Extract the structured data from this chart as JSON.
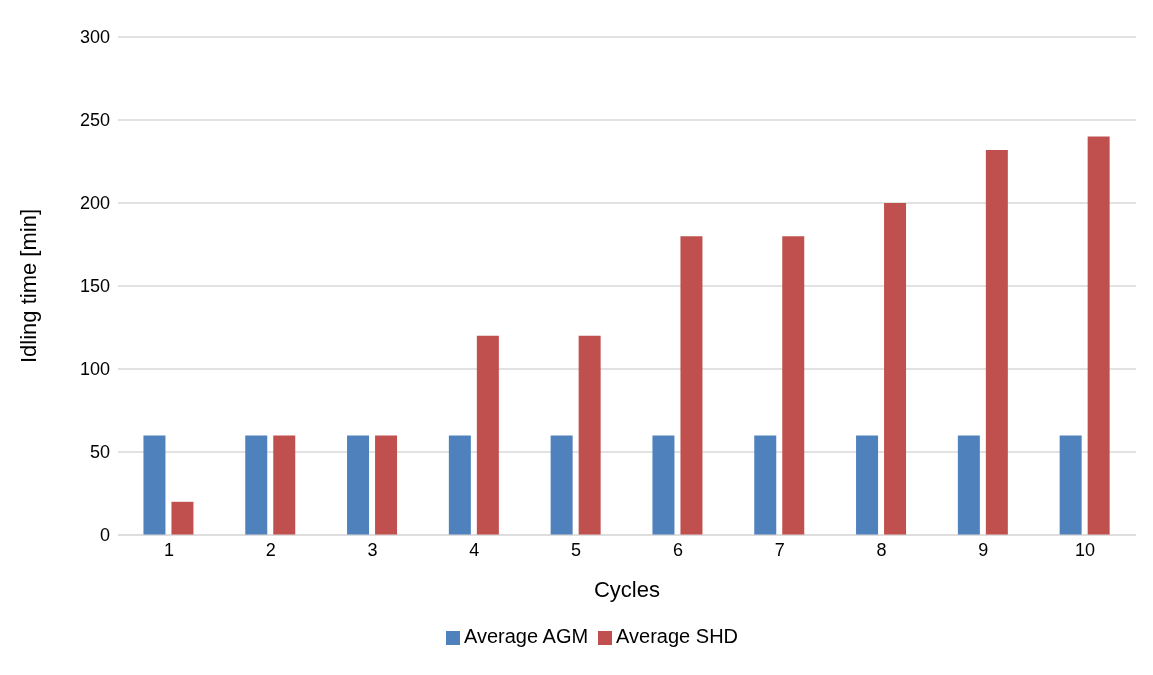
{
  "chart_data": {
    "type": "bar",
    "xlabel": "Cycles",
    "ylabel": "Idling time  [min]",
    "categories": [
      "1",
      "2",
      "3",
      "4",
      "5",
      "6",
      "7",
      "8",
      "9",
      "10"
    ],
    "series": [
      {
        "name": "Average AGM",
        "color": "#4f81bd",
        "values": [
          60,
          60,
          60,
          60,
          60,
          60,
          60,
          60,
          60,
          60
        ]
      },
      {
        "name": "Average SHD",
        "color": "#c0504d",
        "values": [
          20,
          60,
          60,
          120,
          120,
          180,
          180,
          200,
          232,
          240
        ]
      }
    ],
    "ylim": [
      0,
      300
    ],
    "yticks": [
      0,
      50,
      100,
      150,
      200,
      250,
      300
    ],
    "grid": "y",
    "legend": "bottom"
  }
}
